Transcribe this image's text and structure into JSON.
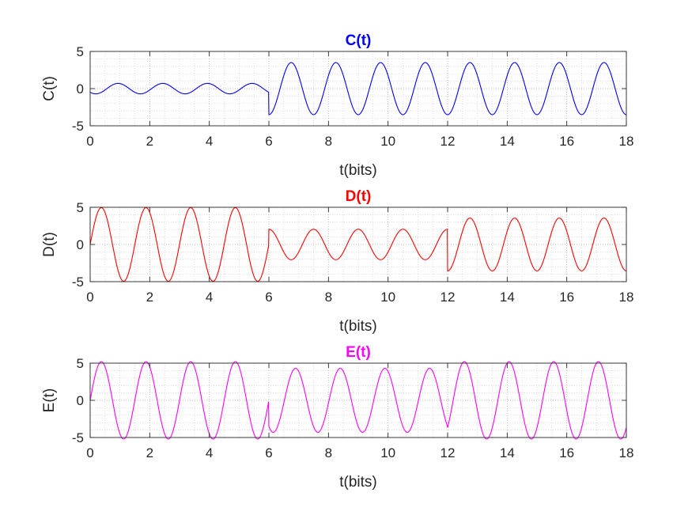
{
  "chart_data": [
    {
      "type": "line",
      "title": "C(t)",
      "title_color": "#0000ff",
      "xlabel": "t(bits)",
      "ylabel": "C(t)",
      "xlim": [
        0,
        18
      ],
      "ylim": [
        -5,
        5
      ],
      "xticks": [
        0,
        2,
        4,
        6,
        8,
        10,
        12,
        14,
        16,
        18
      ],
      "yticks": [
        -5,
        0,
        5
      ],
      "grid": true,
      "minor_grid": true,
      "series": [
        {
          "color": "#0000ff",
          "segments": [
            {
              "t_start": 0,
              "t_end": 6,
              "amplitude": 0.7,
              "cycles_per_bit": 0.6667,
              "phase_deg": 225
            },
            {
              "t_start": 6,
              "t_end": 18,
              "amplitude": 3.5,
              "cycles_per_bit": 0.6667,
              "phase_deg": 270
            }
          ]
        }
      ]
    },
    {
      "type": "line",
      "title": "D(t)",
      "title_color": "#ff0000",
      "xlabel": "t(bits)",
      "ylabel": "D(t)",
      "xlim": [
        0,
        18
      ],
      "ylim": [
        -5,
        5
      ],
      "xticks": [
        0,
        2,
        4,
        6,
        8,
        10,
        12,
        14,
        16,
        18
      ],
      "yticks": [
        -5,
        0,
        5
      ],
      "grid": true,
      "minor_grid": true,
      "series": [
        {
          "color": "#ff0000",
          "segments": [
            {
              "t_start": 0,
              "t_end": 6,
              "amplitude": 4.95,
              "cycles_per_bit": 0.6667,
              "phase_deg": 0
            },
            {
              "t_start": 6,
              "t_end": 12,
              "amplitude": 2.05,
              "cycles_per_bit": 0.6667,
              "phase_deg": 90
            },
            {
              "t_start": 12,
              "t_end": 18,
              "amplitude": 3.55,
              "cycles_per_bit": 0.6667,
              "phase_deg": 270
            }
          ]
        }
      ]
    },
    {
      "type": "line",
      "title": "E(t)",
      "title_color": "#ff00ff",
      "xlabel": "t(bits)",
      "ylabel": "E(t)",
      "xlim": [
        0,
        18
      ],
      "ylim": [
        -5,
        5
      ],
      "xticks": [
        0,
        2,
        4,
        6,
        8,
        10,
        12,
        14,
        16,
        18
      ],
      "yticks": [
        -5,
        0,
        5
      ],
      "grid": true,
      "minor_grid": true,
      "series": [
        {
          "color": "#ff00ff",
          "segments": [
            {
              "t_start": 0,
              "t_end": 6,
              "amplitude": 5.2,
              "cycles_per_bit": 0.6667,
              "phase_deg": 0
            },
            {
              "t_start": 6,
              "t_end": 12,
              "amplitude": 4.3,
              "cycles_per_bit": 0.6667,
              "phase_deg": 235
            },
            {
              "t_start": 12,
              "t_end": 18,
              "amplitude": 5.2,
              "cycles_per_bit": 0.6667,
              "phase_deg": 315
            }
          ]
        }
      ]
    }
  ]
}
